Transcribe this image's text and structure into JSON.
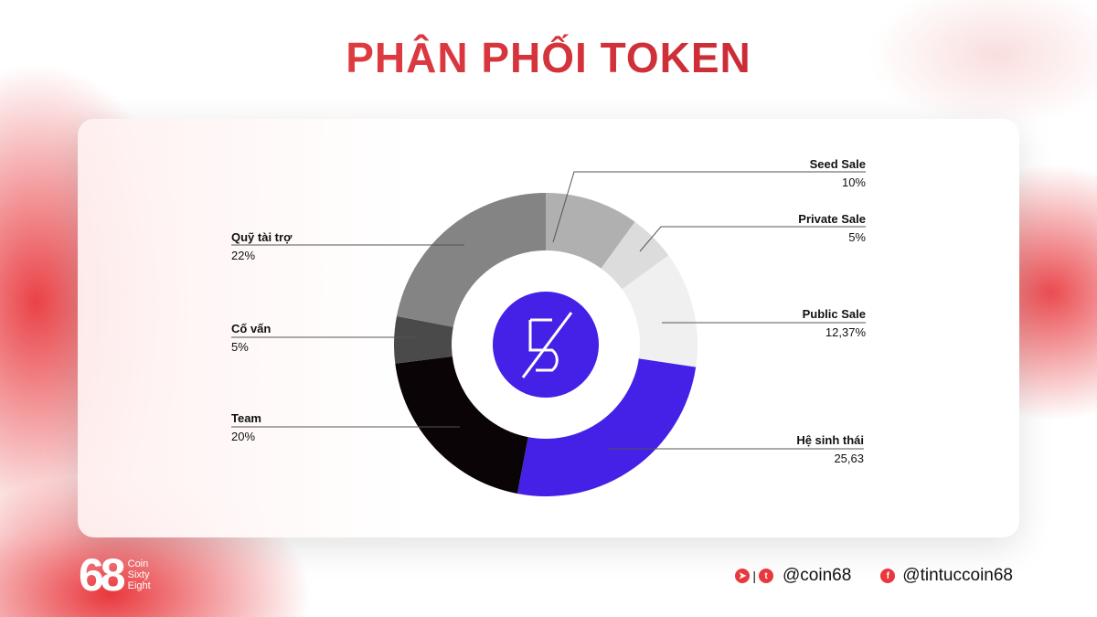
{
  "title": "PHÂN PHỐI TOKEN",
  "chart_data": {
    "type": "pie",
    "variant": "donut",
    "slices": [
      {
        "name": "Seed Sale",
        "value": 10,
        "label": "10%",
        "color": "#b0b0b0"
      },
      {
        "name": "Private Sale",
        "value": 5,
        "label": "5%",
        "color": "#dcdcdc"
      },
      {
        "name": "Public Sale",
        "value": 12.37,
        "label": "12,37%",
        "color": "#f0f0f0"
      },
      {
        "name": "Hệ sinh thái",
        "value": 25.63,
        "label": "25,63",
        "color": "#4520e6"
      },
      {
        "name": "Team",
        "value": 20,
        "label": "20%",
        "color": "#0a0407"
      },
      {
        "name": "Cố vấn",
        "value": 5,
        "label": "5%",
        "color": "#4a4a4a"
      },
      {
        "name": "Quỹ tài trợ",
        "value": 22,
        "label": "22%",
        "color": "#848484"
      }
    ],
    "center_logo_color": "#4520e6"
  },
  "brand": {
    "big": "68",
    "line1": "Coin",
    "line2": "Sixty",
    "line3": "Eight",
    "accent": "#e8383d"
  },
  "social": {
    "handle1": "@coin68",
    "handle2": "@tintuccoin68"
  }
}
